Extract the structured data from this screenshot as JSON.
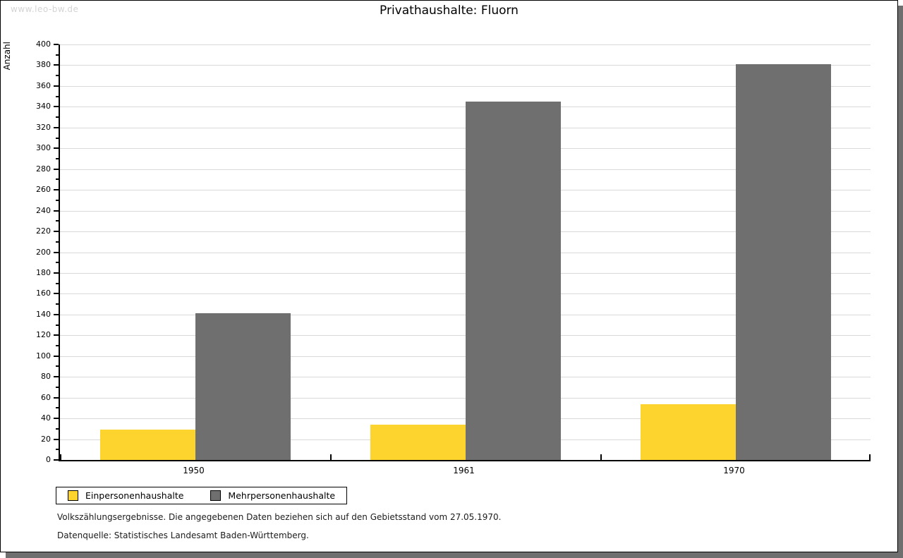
{
  "watermark": "www.leo-bw.de",
  "chart_data": {
    "type": "bar",
    "title": "Privathaushalte: Fluorn",
    "ylabel": "Anzahl",
    "xlabel": "",
    "ylim": [
      0,
      400
    ],
    "ytick_step": 20,
    "yminor_step": 10,
    "grid": "horizontal-major",
    "legend_position": "bottom-left",
    "categories": [
      "1950",
      "1961",
      "1970"
    ],
    "series": [
      {
        "name": "Einpersonenhaushalte",
        "color": "#fcd42d",
        "values": [
          29,
          34,
          54
        ]
      },
      {
        "name": "Mehrpersonenhaushalte",
        "color": "#6f6f6f",
        "values": [
          141,
          345,
          381
        ]
      }
    ]
  },
  "footer": {
    "line1": "Volkszählungsergebnisse. Die angegebenen Daten beziehen sich auf den Gebietsstand vom 27.05.1970.",
    "line2": "Datenquelle: Statistisches Landesamt Baden-Württemberg."
  },
  "colors": {
    "bar_yellow": "#fcd42d",
    "bar_gray": "#6f6f6f",
    "gridline": "#d9d9d9",
    "shadow": "#6f6f6f",
    "watermark": "#d4d4d4"
  }
}
